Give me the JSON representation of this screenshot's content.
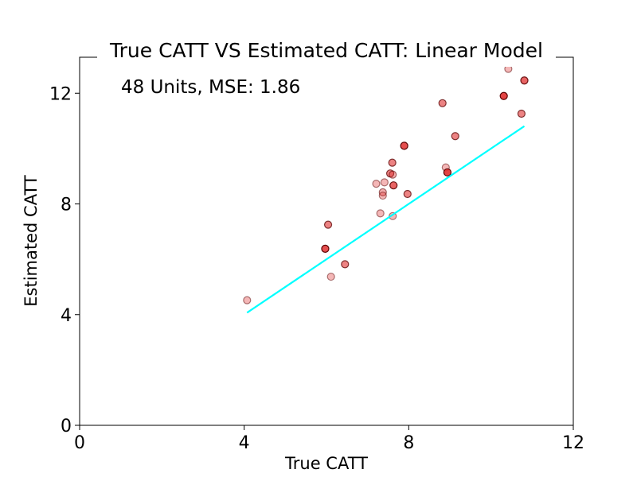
{
  "chart_data": {
    "type": "scatter",
    "title": "True CATT VS Estimated CATT: Linear Model",
    "annotation": "48 Units, MSE: 1.86",
    "xlabel": "True CATT",
    "ylabel": "Estimated CATT",
    "xlim": [
      0,
      12
    ],
    "ylim": [
      0,
      13.3
    ],
    "xticks": [
      0,
      4,
      8,
      12
    ],
    "xtick_labels": [
      "0",
      "4",
      "8",
      "12"
    ],
    "yticks": [
      0,
      4,
      8,
      12
    ],
    "ytick_labels": [
      "0",
      "4",
      "8",
      "12"
    ],
    "grid": false,
    "colors": {
      "point_fill": "#e03030",
      "point_edge": "#5a0000",
      "line": "#00ffff"
    },
    "series": [
      {
        "kind": "points",
        "points": [
          {
            "x": 4.07,
            "y": 4.52,
            "alpha": 0.35
          },
          {
            "x": 5.97,
            "y": 6.38,
            "alpha": 0.85
          },
          {
            "x": 6.04,
            "y": 7.25,
            "alpha": 0.6
          },
          {
            "x": 6.11,
            "y": 5.37,
            "alpha": 0.35
          },
          {
            "x": 6.45,
            "y": 5.82,
            "alpha": 0.6
          },
          {
            "x": 7.21,
            "y": 8.73,
            "alpha": 0.35
          },
          {
            "x": 7.31,
            "y": 7.66,
            "alpha": 0.35
          },
          {
            "x": 7.37,
            "y": 8.42,
            "alpha": 0.4
          },
          {
            "x": 7.37,
            "y": 8.3,
            "alpha": 0.35
          },
          {
            "x": 7.41,
            "y": 8.78,
            "alpha": 0.35
          },
          {
            "x": 7.55,
            "y": 9.1,
            "alpha": 0.6
          },
          {
            "x": 7.6,
            "y": 9.49,
            "alpha": 0.6
          },
          {
            "x": 7.61,
            "y": 9.06,
            "alpha": 0.4
          },
          {
            "x": 7.61,
            "y": 7.56,
            "alpha": 0.35
          },
          {
            "x": 7.63,
            "y": 8.67,
            "alpha": 0.75
          },
          {
            "x": 7.89,
            "y": 10.1,
            "alpha": 0.85
          },
          {
            "x": 7.97,
            "y": 8.36,
            "alpha": 0.6
          },
          {
            "x": 8.82,
            "y": 11.64,
            "alpha": 0.6
          },
          {
            "x": 8.9,
            "y": 9.32,
            "alpha": 0.35
          },
          {
            "x": 8.94,
            "y": 9.14,
            "alpha": 0.9
          },
          {
            "x": 9.13,
            "y": 10.45,
            "alpha": 0.6
          },
          {
            "x": 10.31,
            "y": 11.9,
            "alpha": 0.9
          },
          {
            "x": 10.42,
            "y": 12.88,
            "alpha": 0.35
          },
          {
            "x": 10.74,
            "y": 11.26,
            "alpha": 0.6
          },
          {
            "x": 10.81,
            "y": 12.46,
            "alpha": 0.75
          }
        ]
      },
      {
        "kind": "line",
        "x": [
          4.07,
          10.81
        ],
        "y": [
          4.07,
          10.81
        ]
      }
    ]
  }
}
